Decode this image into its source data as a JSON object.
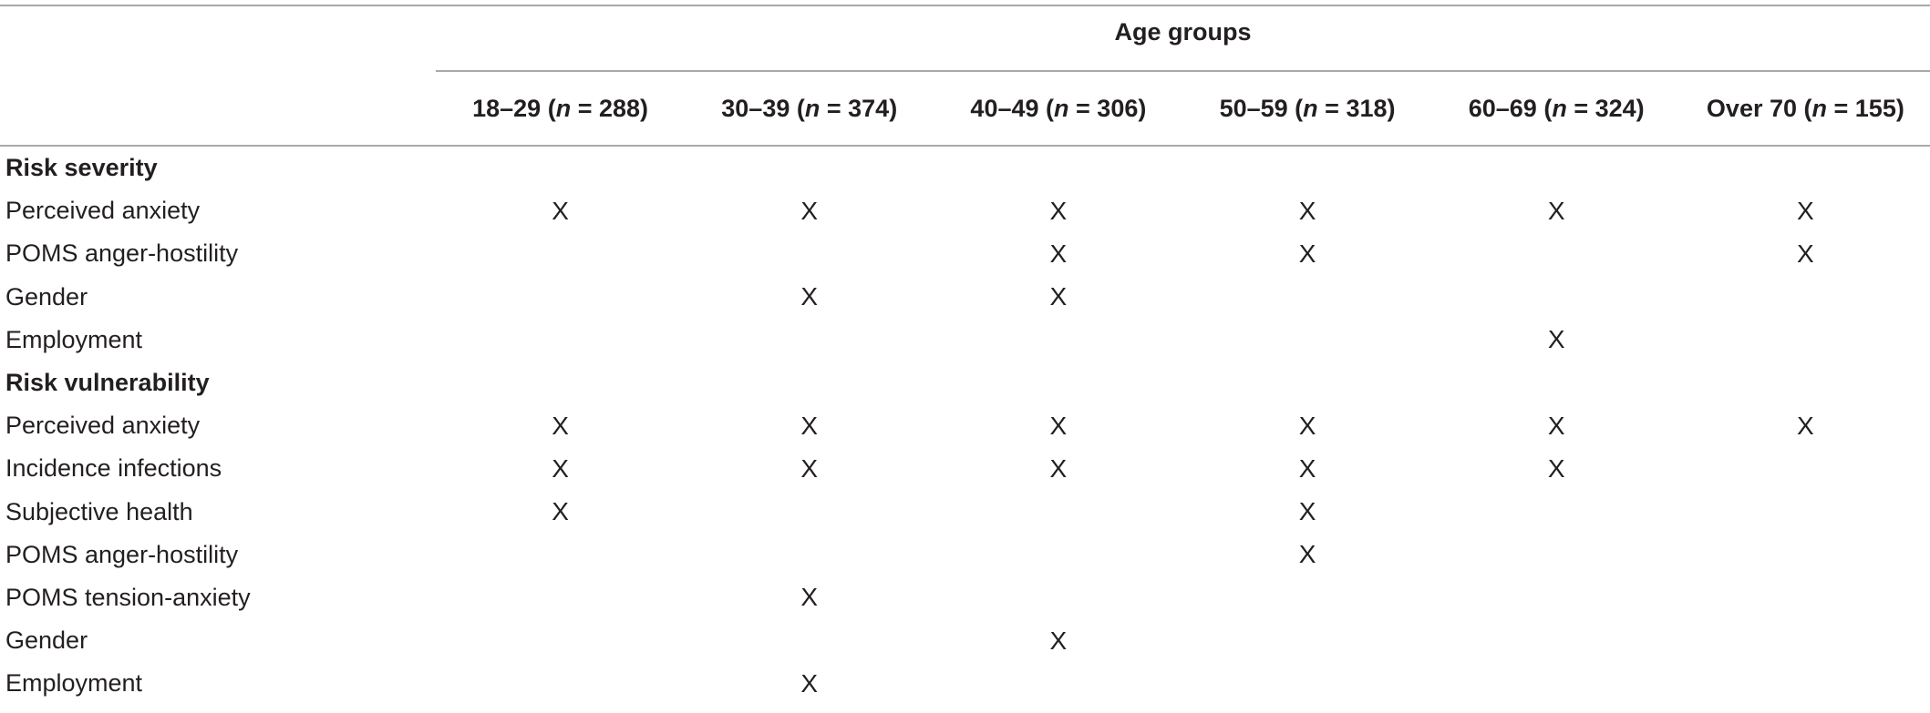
{
  "table": {
    "group_header": "Age groups",
    "columns": [
      {
        "range": "18–29",
        "n": "288"
      },
      {
        "range": "30–39",
        "n": "374"
      },
      {
        "range": "40–49",
        "n": "306"
      },
      {
        "range": "50–59",
        "n": "318"
      },
      {
        "range": "60–69",
        "n": "324"
      },
      {
        "range": "Over 70",
        "n": "155"
      }
    ],
    "n_symbol": "n",
    "mark_symbol": "X",
    "sections": [
      {
        "title": "Risk severity",
        "rows": [
          {
            "label": "Perceived anxiety",
            "marks": [
              "X",
              "X",
              "X",
              "X",
              "X",
              "X"
            ]
          },
          {
            "label": "POMS anger-hostility",
            "marks": [
              "",
              "",
              "X",
              "X",
              "",
              "X"
            ]
          },
          {
            "label": "Gender",
            "marks": [
              "",
              "X",
              "X",
              "",
              "",
              ""
            ]
          },
          {
            "label": "Employment",
            "marks": [
              "",
              "",
              "",
              "",
              "X",
              ""
            ]
          }
        ]
      },
      {
        "title": "Risk vulnerability",
        "rows": [
          {
            "label": "Perceived anxiety",
            "marks": [
              "X",
              "X",
              "X",
              "X",
              "X",
              "X"
            ]
          },
          {
            "label": "Incidence infections",
            "marks": [
              "X",
              "X",
              "X",
              "X",
              "X",
              ""
            ]
          },
          {
            "label": "Subjective health",
            "marks": [
              "X",
              "",
              "",
              "X",
              "",
              ""
            ]
          },
          {
            "label": "POMS anger-hostility",
            "marks": [
              "",
              "",
              "",
              "X",
              "",
              ""
            ]
          },
          {
            "label": "POMS tension-anxiety",
            "marks": [
              "",
              "X",
              "",
              "",
              "",
              ""
            ]
          },
          {
            "label": "Gender",
            "marks": [
              "",
              "",
              "X",
              "",
              "",
              ""
            ]
          },
          {
            "label": "Employment",
            "marks": [
              "",
              "X",
              "",
              "",
              "",
              ""
            ]
          }
        ]
      }
    ]
  }
}
